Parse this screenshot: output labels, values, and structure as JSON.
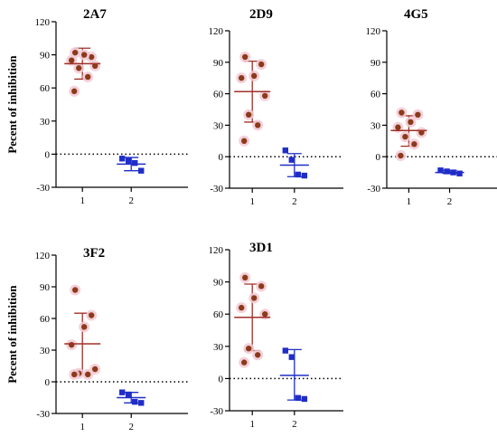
{
  "colors": {
    "group1": "#A03028",
    "group1_points": "#8B3A1A",
    "group1_halo": "#F2C9D4",
    "group2": "#1F2DC8",
    "axis": "#000000"
  },
  "chart_data": [
    {
      "type": "scatter",
      "title": "2A7",
      "ylabel": "Pecent of inhibition",
      "ylim": [
        -30,
        120
      ],
      "yticks": [
        -30,
        0,
        30,
        60,
        90,
        120
      ],
      "categories": [
        "1",
        "2"
      ],
      "reference_line": 0,
      "series": [
        {
          "category": "1",
          "points": [
            92,
            88,
            90,
            85,
            80,
            78,
            70,
            57
          ],
          "mean": 82,
          "sd_upper": 96,
          "sd_lower": 68
        },
        {
          "category": "2",
          "points": [
            -4,
            -6,
            -8,
            -15
          ],
          "mean": -9,
          "sd_upper": -3,
          "sd_lower": -15
        }
      ]
    },
    {
      "type": "scatter",
      "title": "2D9",
      "ylabel": "",
      "ylim": [
        -30,
        120
      ],
      "yticks": [
        -30,
        0,
        30,
        60,
        90,
        120
      ],
      "categories": [
        "1",
        "2"
      ],
      "reference_line": 0,
      "series": [
        {
          "category": "1",
          "points": [
            95,
            88,
            77,
            75,
            58,
            40,
            30,
            15
          ],
          "mean": 62,
          "sd_upper": 91,
          "sd_lower": 33
        },
        {
          "category": "2",
          "points": [
            6,
            -3,
            -17,
            -18
          ],
          "mean": -8,
          "sd_upper": 3,
          "sd_lower": -19
        }
      ]
    },
    {
      "type": "scatter",
      "title": "4G5",
      "ylabel": "",
      "ylim": [
        -30,
        120
      ],
      "yticks": [
        -30,
        0,
        30,
        60,
        90,
        120
      ],
      "categories": [
        "1",
        "2"
      ],
      "reference_line": 0,
      "series": [
        {
          "category": "1",
          "points": [
            42,
            40,
            33,
            28,
            23,
            19,
            12,
            1
          ],
          "mean": 25,
          "sd_upper": 39,
          "sd_lower": 10
        },
        {
          "category": "2",
          "points": [
            -13,
            -14,
            -15,
            -16
          ],
          "mean": -15,
          "sd_upper": -13,
          "sd_lower": -16
        }
      ]
    },
    {
      "type": "scatter",
      "title": "3F2",
      "ylabel": "Pecent of inhibition",
      "ylim": [
        -30,
        120
      ],
      "yticks": [
        -30,
        0,
        30,
        60,
        90,
        120
      ],
      "categories": [
        "1",
        "2"
      ],
      "reference_line": 0,
      "series": [
        {
          "category": "1",
          "points": [
            87,
            63,
            52,
            35,
            12,
            8,
            7,
            7
          ],
          "mean": 36,
          "sd_upper": 65,
          "sd_lower": 7
        },
        {
          "category": "2",
          "points": [
            -10,
            -12,
            -19,
            -20
          ],
          "mean": -15,
          "sd_upper": -10,
          "sd_lower": -20
        }
      ]
    },
    {
      "type": "scatter",
      "title": "3D1",
      "ylabel": "",
      "ylim": [
        -30,
        120
      ],
      "yticks": [
        -30,
        0,
        30,
        60,
        90,
        120
      ],
      "categories": [
        "1",
        "2"
      ],
      "reference_line": 0,
      "series": [
        {
          "category": "1",
          "points": [
            94,
            86,
            75,
            66,
            60,
            28,
            22,
            15
          ],
          "mean": 57,
          "sd_upper": 88,
          "sd_lower": 26
        },
        {
          "category": "2",
          "points": [
            26,
            20,
            -18,
            -19
          ],
          "mean": 3,
          "sd_upper": 27,
          "sd_lower": -20
        }
      ]
    }
  ]
}
